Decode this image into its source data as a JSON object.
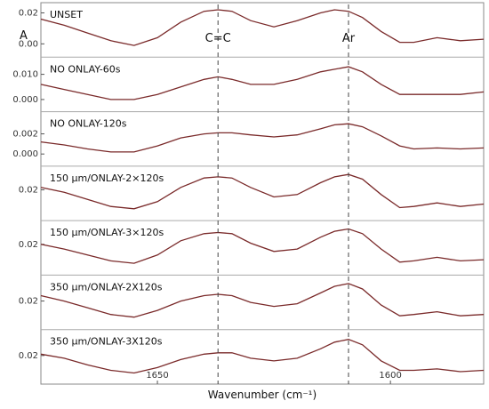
{
  "chart_data": {
    "type": "line",
    "xlabel": "Wavenumber (cm⁻¹)",
    "x_ticks": [
      1650,
      1600
    ],
    "xlim": [
      1675,
      1580
    ],
    "y_axis_symbol": "A",
    "annotations": [
      {
        "text": "C=C",
        "x": 1637
      },
      {
        "text": "Ar",
        "x": 1609
      }
    ],
    "grid": false,
    "line_color": "#7a2a2a",
    "dashed_line_color": "#444444",
    "x": [
      1675,
      1670,
      1665,
      1660,
      1655,
      1650,
      1645,
      1640,
      1637,
      1634,
      1630,
      1625,
      1620,
      1615,
      1612,
      1609,
      1606,
      1602,
      1598,
      1595,
      1590,
      1585,
      1580
    ],
    "series": [
      {
        "name": "UNSET",
        "y_ticks": [
          {
            "value": 0.02,
            "label": "0.02"
          },
          {
            "value": 0.0,
            "label": "0.00"
          }
        ],
        "ylim": [
          -0.004,
          0.022
        ],
        "values": [
          0.016,
          0.012,
          0.007,
          0.002,
          -0.001,
          0.004,
          0.014,
          0.021,
          0.022,
          0.021,
          0.015,
          0.011,
          0.015,
          0.02,
          0.022,
          0.021,
          0.017,
          0.008,
          0.001,
          0.001,
          0.004,
          0.002,
          0.003
        ]
      },
      {
        "name": "NO ONLAY-60s",
        "y_ticks": [
          {
            "value": 0.01,
            "label": "0.010"
          },
          {
            "value": 0.0,
            "label": "0.000"
          }
        ],
        "ylim": [
          -0.002,
          0.014
        ],
        "values": [
          0.006,
          0.004,
          0.002,
          0.0,
          0.0,
          0.002,
          0.005,
          0.008,
          0.009,
          0.008,
          0.006,
          0.006,
          0.008,
          0.011,
          0.012,
          0.013,
          0.011,
          0.006,
          0.002,
          0.002,
          0.002,
          0.002,
          0.003
        ]
      },
      {
        "name": "NO ONLAY-120s",
        "y_ticks": [
          {
            "value": 0.002,
            "label": "0.002"
          },
          {
            "value": 0.0,
            "label": "0.000"
          }
        ],
        "ylim": [
          -0.0005,
          0.0035
        ],
        "values": [
          0.0012,
          0.0009,
          0.0005,
          0.0002,
          0.0002,
          0.0008,
          0.0016,
          0.002,
          0.0021,
          0.0021,
          0.0019,
          0.0017,
          0.0019,
          0.0025,
          0.0029,
          0.003,
          0.0027,
          0.0018,
          0.0008,
          0.0005,
          0.0006,
          0.0005,
          0.0006
        ]
      },
      {
        "name": "150 μm/ONLAY-2×120s",
        "y_ticks": [
          {
            "value": 0.02,
            "label": "0.02"
          }
        ],
        "ylim": [
          0.0,
          0.034
        ],
        "values": [
          0.022,
          0.018,
          0.012,
          0.006,
          0.004,
          0.01,
          0.022,
          0.03,
          0.031,
          0.03,
          0.022,
          0.014,
          0.016,
          0.026,
          0.031,
          0.033,
          0.029,
          0.016,
          0.005,
          0.006,
          0.009,
          0.006,
          0.008
        ]
      },
      {
        "name": "150 μm/ONLAY-3×120s",
        "y_ticks": [
          {
            "value": 0.02,
            "label": "0.02"
          }
        ],
        "ylim": [
          0.0,
          0.034
        ],
        "values": [
          0.02,
          0.016,
          0.011,
          0.006,
          0.004,
          0.011,
          0.023,
          0.029,
          0.03,
          0.029,
          0.021,
          0.014,
          0.016,
          0.026,
          0.031,
          0.033,
          0.029,
          0.016,
          0.005,
          0.006,
          0.009,
          0.006,
          0.007
        ]
      },
      {
        "name": "350 μm/ONLAY-2X120s",
        "y_ticks": [
          {
            "value": 0.02,
            "label": "0.02"
          }
        ],
        "ylim": [
          0.004,
          0.034
        ],
        "values": [
          0.024,
          0.02,
          0.015,
          0.01,
          0.008,
          0.013,
          0.02,
          0.024,
          0.025,
          0.024,
          0.019,
          0.016,
          0.018,
          0.026,
          0.031,
          0.033,
          0.029,
          0.017,
          0.009,
          0.01,
          0.012,
          0.009,
          0.01
        ]
      },
      {
        "name": "350 μm/ONLAY-3X120s",
        "y_ticks": [
          {
            "value": 0.02,
            "label": "0.02"
          }
        ],
        "ylim": [
          0.004,
          0.034
        ],
        "values": [
          0.021,
          0.018,
          0.013,
          0.009,
          0.007,
          0.011,
          0.017,
          0.021,
          0.022,
          0.022,
          0.018,
          0.016,
          0.018,
          0.025,
          0.03,
          0.032,
          0.028,
          0.016,
          0.009,
          0.009,
          0.01,
          0.008,
          0.009
        ]
      }
    ]
  }
}
